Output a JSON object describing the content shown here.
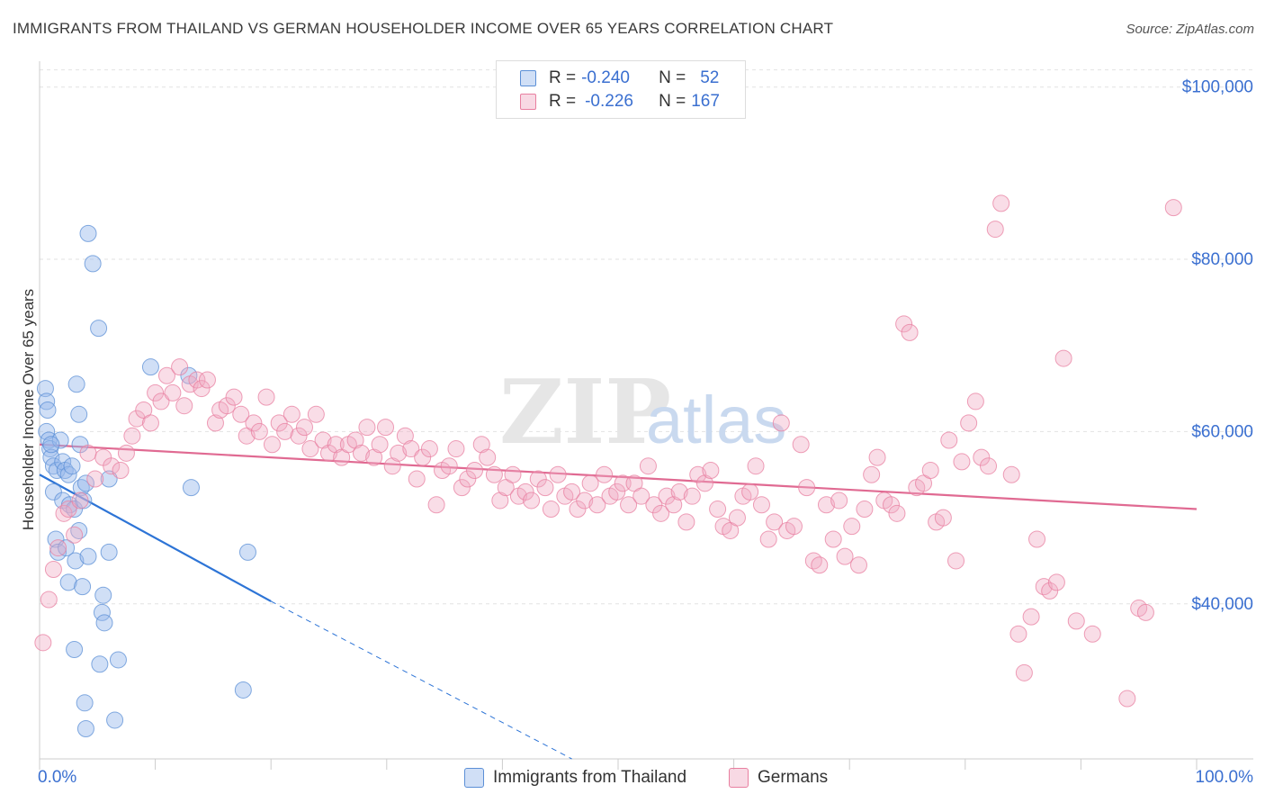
{
  "title": "IMMIGRANTS FROM THAILAND VS GERMAN HOUSEHOLDER INCOME OVER 65 YEARS CORRELATION CHART",
  "source": "Source: ZipAtlas.com",
  "watermark": {
    "zip": "ZIP",
    "atlas": "atlas"
  },
  "legend": {
    "r_label": "R =",
    "n_label": "N =",
    "rows": [
      {
        "r": "-0.240",
        "n": "52",
        "color": "#5b8fd6"
      },
      {
        "r": "-0.226",
        "n": "167",
        "color": "#e87fa0"
      }
    ]
  },
  "chart_data": {
    "type": "scatter",
    "title": "IMMIGRANTS FROM THAILAND VS GERMAN HOUSEHOLDER INCOME OVER 65 YEARS CORRELATION CHART",
    "xlabel": "",
    "ylabel": "Householder Income Over 65 years",
    "x_tick_labels": [
      "0.0%",
      "100.0%"
    ],
    "y_tick_labels": [
      "$100,000",
      "$80,000",
      "$60,000",
      "$40,000"
    ],
    "y_ticks": [
      100000,
      80000,
      60000,
      40000
    ],
    "xlim": [
      0,
      100
    ],
    "ylim": [
      22000,
      103000
    ],
    "grid": true,
    "series": [
      {
        "name": "Immigrants from Thailand",
        "color": "#5b8fd6",
        "fill": "rgba(150,185,235,0.45)",
        "trend": {
          "x": [
            0,
            20
          ],
          "y": [
            55000,
            40300
          ],
          "dashed_to": [
            46,
            22000
          ]
        },
        "points": [
          [
            0.5,
            65000
          ],
          [
            0.6,
            63500
          ],
          [
            0.7,
            62500
          ],
          [
            0.6,
            60000
          ],
          [
            0.8,
            59000
          ],
          [
            0.9,
            58000
          ],
          [
            1.0,
            57000
          ],
          [
            1.2,
            56000
          ],
          [
            1.5,
            55500
          ],
          [
            1.8,
            59000
          ],
          [
            2.0,
            56500
          ],
          [
            2.2,
            55500
          ],
          [
            2.5,
            55000
          ],
          [
            2.8,
            56000
          ],
          [
            3.2,
            65500
          ],
          [
            3.4,
            62000
          ],
          [
            3.5,
            58500
          ],
          [
            1.2,
            53000
          ],
          [
            2.0,
            52000
          ],
          [
            2.6,
            51500
          ],
          [
            3.0,
            51000
          ],
          [
            3.6,
            53500
          ],
          [
            3.8,
            52000
          ],
          [
            4.0,
            54000
          ],
          [
            3.4,
            48500
          ],
          [
            1.4,
            47500
          ],
          [
            1.6,
            46000
          ],
          [
            2.3,
            46500
          ],
          [
            3.1,
            45000
          ],
          [
            2.5,
            42500
          ],
          [
            3.7,
            42000
          ],
          [
            4.2,
            45500
          ],
          [
            6.0,
            46000
          ],
          [
            5.5,
            41000
          ],
          [
            5.4,
            39000
          ],
          [
            5.6,
            37800
          ],
          [
            3.0,
            34700
          ],
          [
            5.2,
            33000
          ],
          [
            6.8,
            33500
          ],
          [
            3.9,
            28500
          ],
          [
            4.0,
            25500
          ],
          [
            6.5,
            26500
          ],
          [
            4.2,
            83000
          ],
          [
            4.6,
            79500
          ],
          [
            5.1,
            72000
          ],
          [
            9.6,
            67500
          ],
          [
            12.9,
            66500
          ],
          [
            13.1,
            53500
          ],
          [
            18.0,
            46000
          ],
          [
            17.6,
            30000
          ],
          [
            6.0,
            54500
          ],
          [
            1.0,
            58500
          ]
        ]
      },
      {
        "name": "Germans",
        "color": "#e87fa0",
        "fill": "rgba(240,170,195,0.4)",
        "trend": {
          "x": [
            0,
            100
          ],
          "y": [
            58500,
            51000
          ]
        },
        "points": [
          [
            0.3,
            35500
          ],
          [
            0.8,
            40500
          ],
          [
            1.2,
            44000
          ],
          [
            1.6,
            46500
          ],
          [
            2.1,
            50500
          ],
          [
            2.5,
            51000
          ],
          [
            3.0,
            48000
          ],
          [
            3.5,
            52000
          ],
          [
            4.2,
            57500
          ],
          [
            4.8,
            54500
          ],
          [
            5.5,
            57000
          ],
          [
            6.2,
            56000
          ],
          [
            7.0,
            55500
          ],
          [
            7.5,
            57500
          ],
          [
            8.0,
            59500
          ],
          [
            8.4,
            61500
          ],
          [
            9.0,
            62500
          ],
          [
            9.6,
            61000
          ],
          [
            10.0,
            64500
          ],
          [
            10.5,
            63500
          ],
          [
            11.0,
            66500
          ],
          [
            11.5,
            64500
          ],
          [
            12.1,
            67500
          ],
          [
            12.5,
            63000
          ],
          [
            13.0,
            65500
          ],
          [
            13.6,
            66000
          ],
          [
            14.0,
            65000
          ],
          [
            14.5,
            66000
          ],
          [
            15.2,
            61000
          ],
          [
            15.6,
            62500
          ],
          [
            16.2,
            63000
          ],
          [
            16.8,
            64000
          ],
          [
            17.4,
            62000
          ],
          [
            17.9,
            59500
          ],
          [
            18.5,
            61000
          ],
          [
            19.0,
            60000
          ],
          [
            19.6,
            64000
          ],
          [
            20.1,
            58500
          ],
          [
            20.7,
            61000
          ],
          [
            21.2,
            60000
          ],
          [
            21.8,
            62000
          ],
          [
            22.4,
            59500
          ],
          [
            22.9,
            60500
          ],
          [
            23.4,
            58000
          ],
          [
            23.9,
            62000
          ],
          [
            24.5,
            59000
          ],
          [
            25.0,
            57500
          ],
          [
            25.6,
            58500
          ],
          [
            26.1,
            57000
          ],
          [
            26.7,
            58500
          ],
          [
            27.3,
            59000
          ],
          [
            27.8,
            57500
          ],
          [
            28.3,
            60500
          ],
          [
            28.9,
            57000
          ],
          [
            29.4,
            58500
          ],
          [
            29.9,
            60500
          ],
          [
            30.5,
            56000
          ],
          [
            31.0,
            57500
          ],
          [
            31.6,
            59500
          ],
          [
            32.1,
            58000
          ],
          [
            32.6,
            54500
          ],
          [
            33.1,
            57000
          ],
          [
            33.7,
            58000
          ],
          [
            34.3,
            51500
          ],
          [
            34.8,
            55500
          ],
          [
            35.4,
            56000
          ],
          [
            36.0,
            58000
          ],
          [
            36.5,
            53500
          ],
          [
            37.0,
            54500
          ],
          [
            37.6,
            55500
          ],
          [
            38.2,
            58500
          ],
          [
            38.7,
            57000
          ],
          [
            39.3,
            55000
          ],
          [
            39.8,
            52000
          ],
          [
            40.3,
            53500
          ],
          [
            40.9,
            55000
          ],
          [
            41.4,
            52500
          ],
          [
            42.0,
            53000
          ],
          [
            42.5,
            52000
          ],
          [
            43.1,
            54500
          ],
          [
            43.7,
            53500
          ],
          [
            44.2,
            51000
          ],
          [
            44.8,
            55000
          ],
          [
            45.4,
            52500
          ],
          [
            46.0,
            53000
          ],
          [
            46.5,
            51000
          ],
          [
            47.1,
            52000
          ],
          [
            47.6,
            54000
          ],
          [
            48.2,
            51500
          ],
          [
            48.8,
            55000
          ],
          [
            49.3,
            52500
          ],
          [
            49.9,
            53000
          ],
          [
            50.4,
            54000
          ],
          [
            50.9,
            51500
          ],
          [
            51.4,
            54000
          ],
          [
            52.0,
            52500
          ],
          [
            52.6,
            56000
          ],
          [
            53.1,
            51500
          ],
          [
            53.7,
            50500
          ],
          [
            54.2,
            52500
          ],
          [
            54.8,
            51500
          ],
          [
            55.3,
            53000
          ],
          [
            55.9,
            49500
          ],
          [
            56.4,
            52500
          ],
          [
            56.9,
            55000
          ],
          [
            57.5,
            54000
          ],
          [
            58.0,
            55500
          ],
          [
            58.6,
            51000
          ],
          [
            59.1,
            49000
          ],
          [
            59.7,
            48500
          ],
          [
            60.3,
            50000
          ],
          [
            60.8,
            52500
          ],
          [
            61.4,
            53000
          ],
          [
            61.9,
            56000
          ],
          [
            62.4,
            51500
          ],
          [
            63.0,
            47500
          ],
          [
            63.5,
            49500
          ],
          [
            64.1,
            61000
          ],
          [
            64.6,
            48500
          ],
          [
            65.2,
            49000
          ],
          [
            65.8,
            58500
          ],
          [
            66.3,
            53500
          ],
          [
            66.9,
            45000
          ],
          [
            67.4,
            44500
          ],
          [
            68.0,
            51500
          ],
          [
            68.6,
            47500
          ],
          [
            69.1,
            52000
          ],
          [
            69.6,
            45500
          ],
          [
            70.2,
            49000
          ],
          [
            70.8,
            44500
          ],
          [
            71.3,
            51000
          ],
          [
            71.9,
            55000
          ],
          [
            72.4,
            57000
          ],
          [
            73.0,
            52000
          ],
          [
            73.6,
            51500
          ],
          [
            74.1,
            50500
          ],
          [
            74.7,
            72500
          ],
          [
            75.2,
            71500
          ],
          [
            75.8,
            53500
          ],
          [
            76.4,
            54000
          ],
          [
            77.0,
            55500
          ],
          [
            77.5,
            49500
          ],
          [
            78.1,
            50000
          ],
          [
            78.6,
            59000
          ],
          [
            79.2,
            45000
          ],
          [
            79.7,
            56500
          ],
          [
            80.3,
            61000
          ],
          [
            80.9,
            63500
          ],
          [
            81.4,
            57000
          ],
          [
            82.0,
            56000
          ],
          [
            82.6,
            83500
          ],
          [
            83.1,
            86500
          ],
          [
            84.0,
            55000
          ],
          [
            84.6,
            36500
          ],
          [
            85.1,
            32000
          ],
          [
            85.7,
            38500
          ],
          [
            86.2,
            47500
          ],
          [
            86.8,
            42000
          ],
          [
            87.3,
            41500
          ],
          [
            87.9,
            42500
          ],
          [
            88.5,
            68500
          ],
          [
            89.6,
            38000
          ],
          [
            91.0,
            36500
          ],
          [
            94.0,
            29000
          ],
          [
            95.0,
            39500
          ],
          [
            95.6,
            39000
          ],
          [
            98.0,
            86000
          ]
        ]
      }
    ]
  }
}
